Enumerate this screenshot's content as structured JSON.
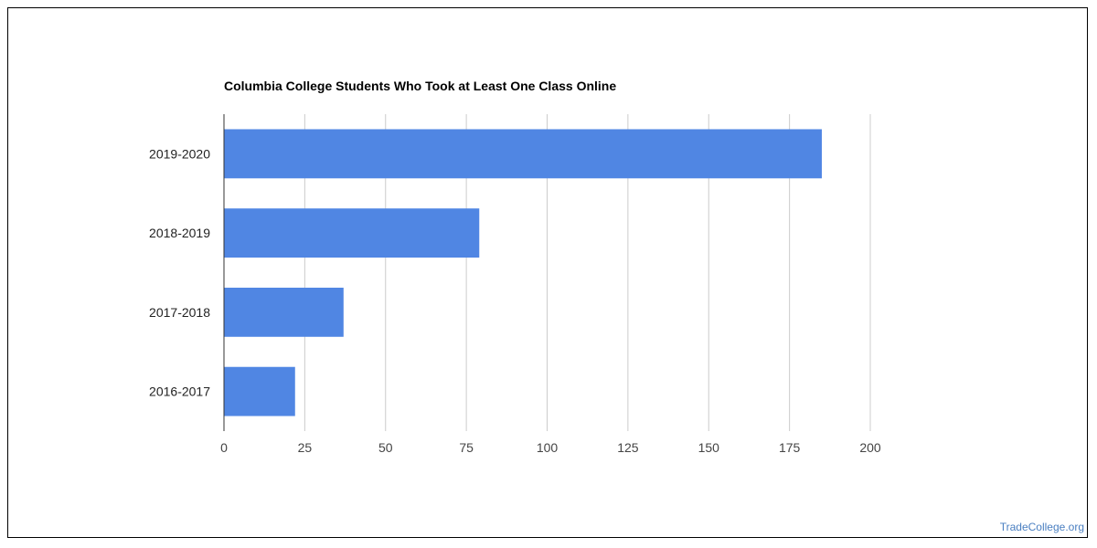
{
  "chart_data": {
    "type": "bar",
    "orientation": "horizontal",
    "title": "Columbia College Students Who Took at Least One Class Online",
    "categories": [
      "2019-2020",
      "2018-2019",
      "2017-2018",
      "2016-2017"
    ],
    "values": [
      185,
      79,
      37,
      22
    ],
    "xlim": [
      0,
      200
    ],
    "xticks": [
      0,
      25,
      50,
      75,
      100,
      125,
      150,
      175,
      200
    ],
    "xlabel": "",
    "ylabel": "",
    "grid": true,
    "bar_color": "#5086e3",
    "grid_color": "#cccccc",
    "axis_color": "#333333"
  },
  "watermark": "TradeCollege.org"
}
